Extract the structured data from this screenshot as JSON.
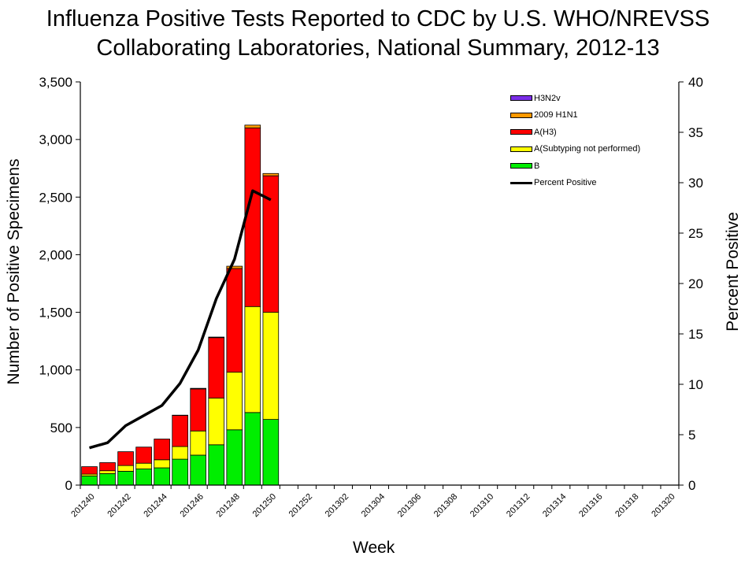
{
  "title": {
    "line1": "Influenza Positive Tests Reported to CDC by U.S. WHO/NREVSS",
    "line2": "Collaborating Laboratories, National Summary, 2012-13"
  },
  "axes": {
    "xlabel": "Week",
    "ylabel_left": "Number of Positive Specimens",
    "ylabel_right": "Percent Positive"
  },
  "legend": {
    "items": [
      {
        "label": "H3N2v",
        "color": "#7b2ee8",
        "kind": "bar"
      },
      {
        "label": "2009 H1N1",
        "color": "#ff9900",
        "kind": "bar"
      },
      {
        "label": "A(H3)",
        "color": "#ff0000",
        "kind": "bar"
      },
      {
        "label": "A(Subtyping not performed)",
        "color": "#ffff00",
        "kind": "bar"
      },
      {
        "label": "B",
        "color": "#00ee00",
        "kind": "bar"
      },
      {
        "label": "Percent Positive",
        "color": "#000000",
        "kind": "line"
      }
    ]
  },
  "chart_data": {
    "type": "bar",
    "stacked": true,
    "title": "Influenza Positive Tests Reported to CDC by U.S. WHO/NREVSS Collaborating Laboratories, National Summary, 2012-13",
    "xlabel": "Week",
    "ylabel": "Number of Positive Specimens",
    "y2label": "Percent Positive",
    "ylim": [
      0,
      3500
    ],
    "y2lim": [
      0,
      40
    ],
    "yticks": [
      "0",
      "500",
      "1,000",
      "1,500",
      "2,000",
      "2,500",
      "3,000",
      "3,500"
    ],
    "y2ticks": [
      "0",
      "5",
      "10",
      "15",
      "20",
      "25",
      "30",
      "35",
      "40"
    ],
    "weeks": [
      "201240",
      "201241",
      "201242",
      "201243",
      "201244",
      "201245",
      "201246",
      "201247",
      "201248",
      "201249",
      "201250",
      "201251",
      "201252",
      "201301",
      "201302",
      "201303",
      "201304",
      "201305",
      "201306",
      "201307",
      "201308",
      "201309",
      "201310",
      "201311",
      "201312",
      "201313",
      "201314",
      "201315",
      "201316",
      "201317",
      "201318",
      "201319",
      "201320"
    ],
    "xtick_labels": [
      "201240",
      "201242",
      "201244",
      "201246",
      "201248",
      "201250",
      "201252",
      "201302",
      "201304",
      "201306",
      "201308",
      "201310",
      "201312",
      "201314",
      "201316",
      "201318",
      "201320"
    ],
    "series": [
      {
        "name": "B",
        "color": "#00ee00",
        "values": [
          80,
          100,
          120,
          140,
          150,
          225,
          260,
          350,
          480,
          630,
          570
        ]
      },
      {
        "name": "A(Subtyping not performed)",
        "color": "#ffff00",
        "values": [
          15,
          25,
          50,
          50,
          70,
          110,
          210,
          405,
          500,
          920,
          930
        ]
      },
      {
        "name": "A(H3)",
        "color": "#ff0000",
        "values": [
          65,
          70,
          120,
          140,
          180,
          270,
          365,
          525,
          900,
          1550,
          1185
        ]
      },
      {
        "name": "2009 H1N1",
        "color": "#ff9900",
        "values": [
          0,
          0,
          0,
          0,
          0,
          2,
          5,
          5,
          20,
          25,
          20
        ]
      },
      {
        "name": "H3N2v",
        "color": "#7b2ee8",
        "values": [
          0,
          0,
          0,
          0,
          0,
          0,
          0,
          0,
          0,
          0,
          0
        ]
      }
    ],
    "percent_positive": [
      3.7,
      4.2,
      5.9,
      6.9,
      7.9,
      10.1,
      13.4,
      18.5,
      22.4,
      29.2,
      28.3
    ]
  }
}
